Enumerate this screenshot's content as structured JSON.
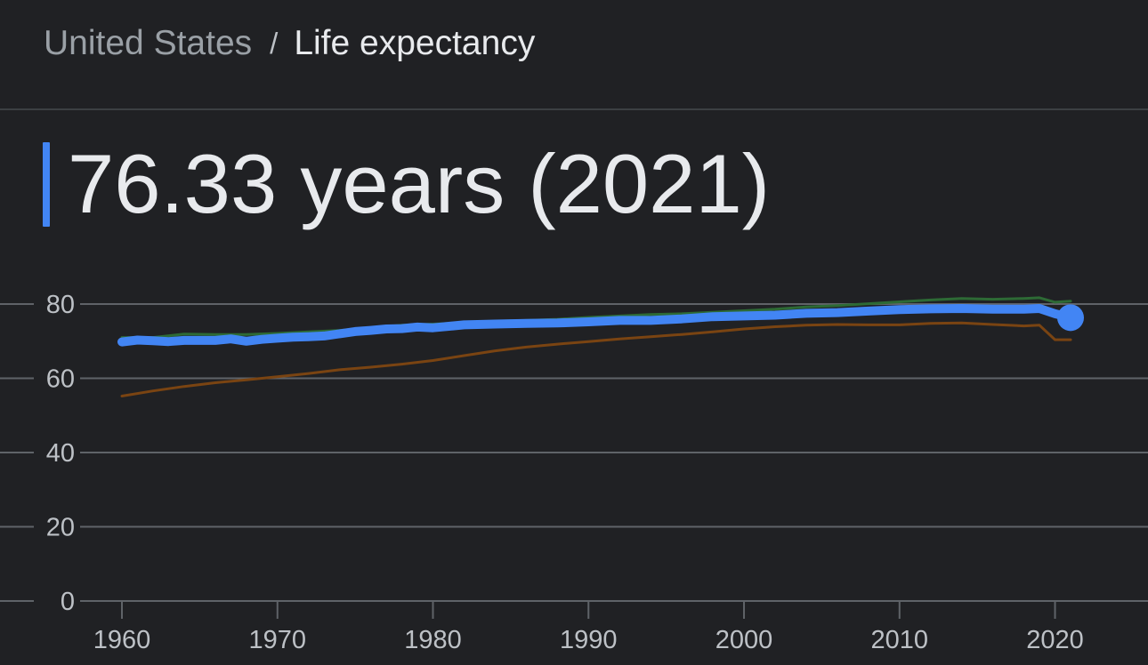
{
  "breadcrumb": {
    "parent": "United States",
    "separator": "/",
    "current": "Life expectancy"
  },
  "headline": {
    "value_text": "76.33 years (2021)",
    "accent_color": "#4285f4"
  },
  "chart_data": {
    "type": "line",
    "xlim": [
      1960,
      2021
    ],
    "ylim": [
      0,
      80
    ],
    "y_ticks": [
      0,
      20,
      40,
      60,
      80
    ],
    "x_ticks": [
      1960,
      1970,
      1980,
      1990,
      2000,
      2010,
      2020
    ],
    "grid": "horizontal",
    "highlight_point": {
      "x": 2021,
      "y": 76.33
    },
    "series": [
      {
        "color": "#2d6a35",
        "width": 3,
        "x": [
          1960,
          1962,
          1964,
          1966,
          1968,
          1970,
          1972,
          1974,
          1976,
          1978,
          1980,
          1982,
          1984,
          1986,
          1988,
          1990,
          1992,
          1994,
          1996,
          1998,
          2000,
          2002,
          2004,
          2006,
          2008,
          2010,
          2012,
          2014,
          2016,
          2018,
          2019,
          2020,
          2021
        ],
        "values": [
          71.0,
          71.0,
          71.9,
          71.8,
          71.8,
          72.1,
          72.5,
          72.9,
          73.6,
          74.3,
          74.6,
          75.0,
          75.4,
          75.6,
          75.9,
          76.4,
          76.8,
          77.2,
          77.4,
          77.8,
          78.2,
          78.6,
          79.2,
          79.6,
          80.1,
          80.6,
          81.1,
          81.5,
          81.3,
          81.5,
          81.7,
          80.5,
          80.8
        ]
      },
      {
        "color": "#7a4412",
        "width": 3,
        "x": [
          1960,
          1962,
          1964,
          1966,
          1968,
          1970,
          1972,
          1974,
          1976,
          1978,
          1980,
          1982,
          1984,
          1986,
          1988,
          1990,
          1992,
          1994,
          1996,
          1998,
          2000,
          2002,
          2004,
          2006,
          2008,
          2010,
          2012,
          2014,
          2016,
          2018,
          2019,
          2020,
          2021
        ],
        "values": [
          55.2,
          56.6,
          57.8,
          58.8,
          59.6,
          60.4,
          61.3,
          62.3,
          63.0,
          63.8,
          64.8,
          66.1,
          67.4,
          68.4,
          69.2,
          69.9,
          70.6,
          71.2,
          71.8,
          72.5,
          73.3,
          73.9,
          74.3,
          74.5,
          74.4,
          74.4,
          74.8,
          74.9,
          74.5,
          74.1,
          74.3,
          70.4,
          70.4
        ]
      },
      {
        "color": "#4285f4",
        "width": 10,
        "x": [
          1960,
          1961,
          1962,
          1963,
          1964,
          1965,
          1966,
          1967,
          1968,
          1969,
          1970,
          1971,
          1972,
          1973,
          1974,
          1975,
          1976,
          1977,
          1978,
          1979,
          1980,
          1982,
          1984,
          1986,
          1988,
          1990,
          1992,
          1994,
          1996,
          1998,
          2000,
          2002,
          2004,
          2006,
          2008,
          2010,
          2012,
          2014,
          2016,
          2018,
          2019,
          2020,
          2021
        ],
        "values": [
          69.8,
          70.3,
          70.1,
          69.9,
          70.2,
          70.2,
          70.2,
          70.6,
          70.0,
          70.5,
          70.8,
          71.1,
          71.2,
          71.4,
          72.0,
          72.6,
          72.9,
          73.3,
          73.4,
          73.8,
          73.6,
          74.4,
          74.6,
          74.8,
          74.9,
          75.2,
          75.6,
          75.6,
          76.0,
          76.6,
          76.8,
          77.0,
          77.5,
          77.7,
          78.1,
          78.5,
          78.7,
          78.8,
          78.6,
          78.6,
          78.8,
          77.4,
          76.33
        ]
      }
    ]
  }
}
